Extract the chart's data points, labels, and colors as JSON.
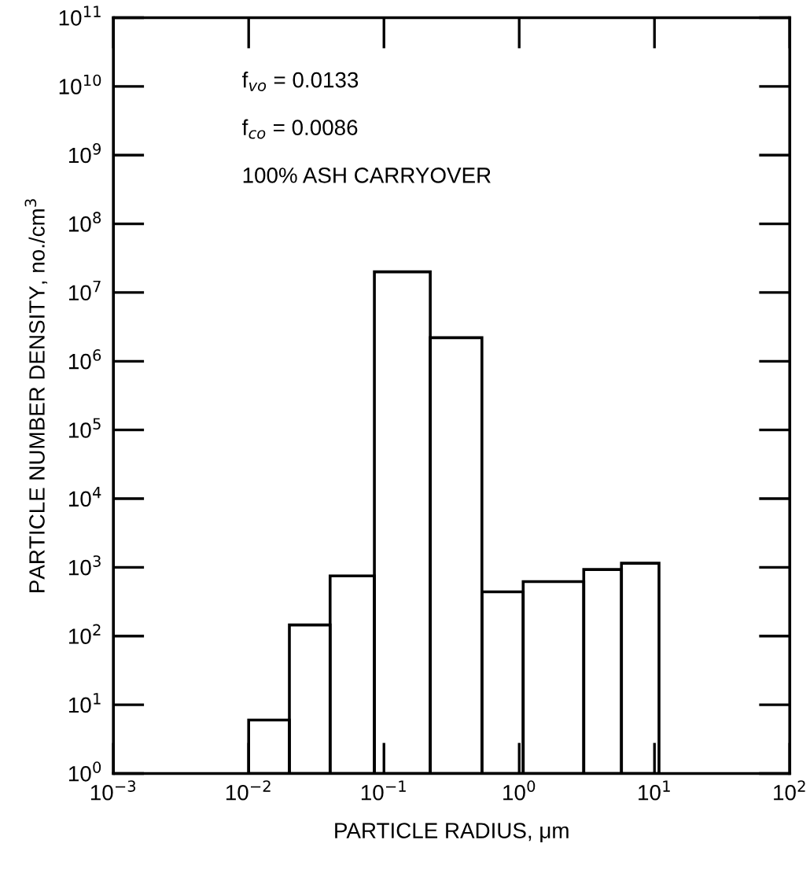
{
  "chart_data": {
    "type": "histogram",
    "xlabel": "PARTICLE RADIUS, μm",
    "ylabel": "PARTICLE NUMBER DENSITY, no./cm$^{3}$",
    "bins": [
      0.01,
      0.02,
      0.04,
      0.085,
      0.22,
      0.53,
      1.07,
      3,
      5.7,
      10.8
    ],
    "values": [
      6,
      145,
      750,
      20000000,
      2200000,
      440,
      620,
      930,
      1150
    ],
    "color": "#000000",
    "log": "xy",
    "grid": false,
    "legend": false,
    "xlim": [
      0.001,
      100
    ],
    "ylim": [
      1,
      100000000000
    ],
    "xticks": [
      {
        "value": 0.001,
        "label": "10$^{−3}$"
      },
      {
        "value": 0.01,
        "label": "10$^{−2}$"
      },
      {
        "value": 0.1,
        "label": "10$^{−1}$"
      },
      {
        "value": 1,
        "label": "10$^{0}$"
      },
      {
        "value": 10,
        "label": "10$^{1}$"
      },
      {
        "value": 100,
        "label": "10$^{2}$"
      }
    ],
    "yticks": [
      {
        "value": 1,
        "label": "10$^{0}$"
      },
      {
        "value": 10,
        "label": "10$^{1}$"
      },
      {
        "value": 100,
        "label": "10$^{2}$"
      },
      {
        "value": 1000,
        "label": "10$^{3}$"
      },
      {
        "value": 10000,
        "label": "10$^{4}$"
      },
      {
        "value": 100000,
        "label": "10$^{5}$"
      },
      {
        "value": 1000000,
        "label": "10$^{6}$"
      },
      {
        "value": 10000000,
        "label": "10$^{7}$"
      },
      {
        "value": 100000000,
        "label": "10$^{8}$"
      },
      {
        "value": 1000000000,
        "label": "10$^{9}$"
      },
      {
        "value": 10000000000,
        "label": "10$^{10}$"
      },
      {
        "value": 100000000000,
        "label": "10$^{11}$"
      }
    ],
    "annotations": [
      "f$_{vo}$ = 0.0133",
      "f$_{co}$ = 0.0086",
      "100% ASH CARRYOVER"
    ]
  }
}
